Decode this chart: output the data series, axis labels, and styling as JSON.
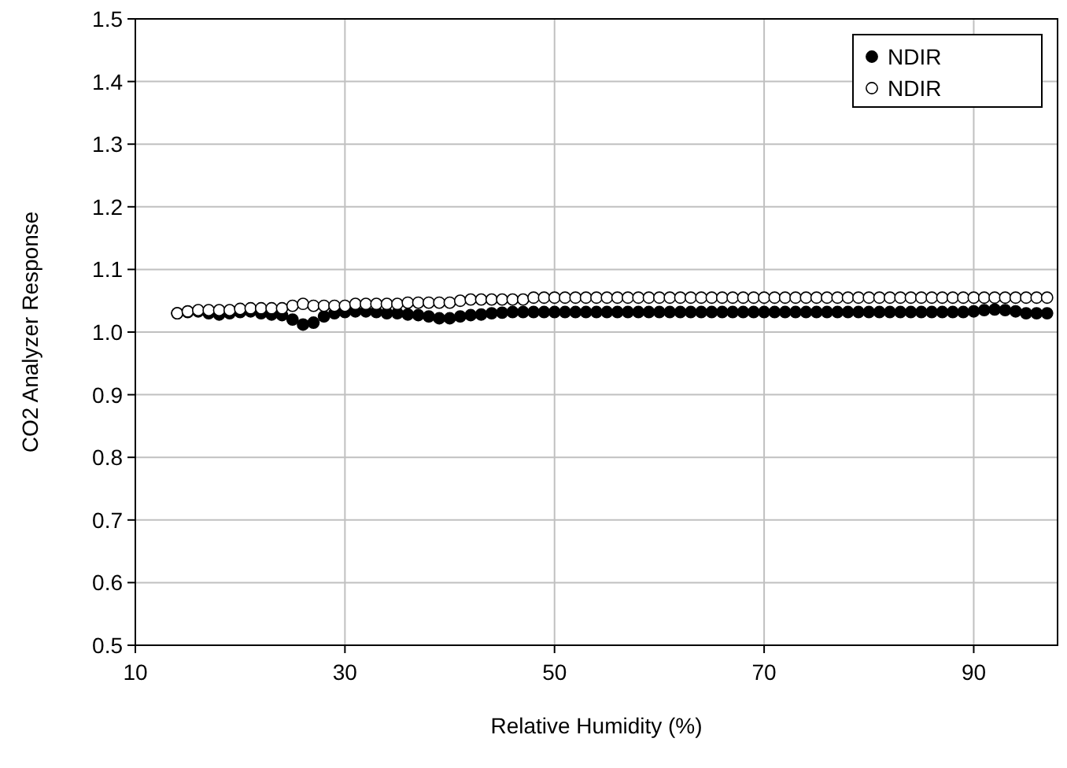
{
  "chart_data": {
    "type": "scatter",
    "xlabel": "Relative Humidity (%)",
    "ylabel": "CO2 Analyzer Response",
    "xlim": [
      10,
      98
    ],
    "xticks": [
      10,
      30,
      50,
      70,
      90
    ],
    "ylim": [
      0.5,
      1.5
    ],
    "yticks": [
      0.5,
      0.6,
      0.7,
      0.8,
      0.9,
      {
        "value": 1,
        "label": "1.0"
      },
      1.1,
      1.2,
      1.3,
      1.4,
      1.5
    ],
    "grid": true,
    "legend": "top right",
    "marker": "circle",
    "x": [
      14,
      15,
      16,
      17,
      18,
      19,
      20,
      21,
      22,
      23,
      24,
      25,
      26,
      27,
      28,
      29,
      30,
      31,
      32,
      33,
      34,
      35,
      36,
      37,
      38,
      39,
      40,
      41,
      42,
      43,
      44,
      45,
      46,
      47,
      48,
      49,
      50,
      51,
      52,
      53,
      54,
      55,
      56,
      57,
      58,
      59,
      60,
      61,
      62,
      63,
      64,
      65,
      66,
      67,
      68,
      69,
      70,
      71,
      72,
      73,
      74,
      75,
      76,
      77,
      78,
      79,
      80,
      81,
      82,
      83,
      84,
      85,
      86,
      87,
      88,
      89,
      90,
      91,
      92,
      93,
      94,
      95,
      96,
      97
    ],
    "series": [
      {
        "name": "NDIR",
        "color": "#000000",
        "values": [
          1.03,
          1.032,
          1.033,
          1.03,
          1.028,
          1.03,
          1.032,
          1.033,
          1.03,
          1.028,
          1.027,
          1.02,
          1.012,
          1.015,
          1.025,
          1.03,
          1.032,
          1.033,
          1.033,
          1.032,
          1.03,
          1.03,
          1.028,
          1.027,
          1.025,
          1.022,
          1.022,
          1.025,
          1.027,
          1.028,
          1.03,
          1.031,
          1.032,
          1.032,
          1.032,
          1.032,
          1.032,
          1.032,
          1.032,
          1.032,
          1.032,
          1.032,
          1.032,
          1.032,
          1.032,
          1.032,
          1.032,
          1.032,
          1.032,
          1.032,
          1.032,
          1.032,
          1.032,
          1.032,
          1.032,
          1.032,
          1.032,
          1.032,
          1.032,
          1.032,
          1.032,
          1.032,
          1.032,
          1.032,
          1.032,
          1.032,
          1.032,
          1.032,
          1.032,
          1.032,
          1.032,
          1.032,
          1.032,
          1.032,
          1.032,
          1.032,
          1.033,
          1.035,
          1.036,
          1.035,
          1.033,
          1.03,
          1.03,
          1.03
        ]
      },
      {
        "name": "NDIR",
        "color": "#ffffff",
        "values": [
          1.03,
          1.033,
          1.035,
          1.035,
          1.035,
          1.035,
          1.037,
          1.038,
          1.038,
          1.038,
          1.038,
          1.042,
          1.045,
          1.042,
          1.042,
          1.042,
          1.042,
          1.045,
          1.045,
          1.045,
          1.045,
          1.045,
          1.047,
          1.047,
          1.047,
          1.047,
          1.047,
          1.05,
          1.052,
          1.052,
          1.052,
          1.052,
          1.052,
          1.052,
          1.055,
          1.055,
          1.055,
          1.055,
          1.055,
          1.055,
          1.055,
          1.055,
          1.055,
          1.055,
          1.055,
          1.055,
          1.055,
          1.055,
          1.055,
          1.055,
          1.055,
          1.055,
          1.055,
          1.055,
          1.055,
          1.055,
          1.055,
          1.055,
          1.055,
          1.055,
          1.055,
          1.055,
          1.055,
          1.055,
          1.055,
          1.055,
          1.055,
          1.055,
          1.055,
          1.055,
          1.055,
          1.055,
          1.055,
          1.055,
          1.055,
          1.055,
          1.055,
          1.055,
          1.055,
          1.055,
          1.055,
          1.055,
          1.055,
          1.055
        ]
      }
    ]
  }
}
